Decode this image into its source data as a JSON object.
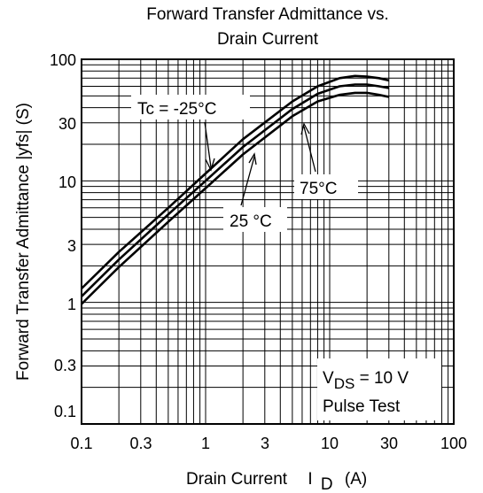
{
  "chart_data": {
    "type": "line",
    "title_lines": [
      "Forward Transfer Admittance vs.",
      "Drain Current"
    ],
    "xlabel": "Drain Current",
    "xlabel_symbol": "I",
    "xlabel_sub": "D",
    "xlabel_unit": "(A)",
    "ylabel": "Forward Transfer Admittance  |yfs|  (S)",
    "x_scale": "log",
    "y_scale": "log",
    "xlim": [
      0.1,
      100
    ],
    "ylim": [
      0.1,
      100
    ],
    "x_ticks": [
      0.1,
      0.3,
      1,
      3,
      10,
      30,
      100
    ],
    "x_tick_labels": [
      "0.1",
      "0.3",
      "1",
      "3",
      "10",
      "30",
      "100"
    ],
    "y_ticks": [
      100,
      30,
      10,
      3,
      1,
      0.3,
      0.1
    ],
    "y_tick_labels": [
      "100",
      "30",
      "10",
      "3",
      "1",
      "0.3",
      "0.1"
    ],
    "grid": true,
    "series": [
      {
        "name": "Tc = -25°C",
        "x": [
          0.1,
          0.2,
          0.5,
          1,
          2,
          5,
          8,
          12,
          16,
          20,
          25,
          30
        ],
        "y": [
          1.3,
          2.6,
          6.0,
          11.5,
          22,
          45,
          60,
          70,
          73,
          72,
          70,
          67
        ]
      },
      {
        "name": "25 °C",
        "x": [
          0.1,
          0.2,
          0.5,
          1,
          2,
          5,
          8,
          12,
          16,
          20,
          25,
          30
        ],
        "y": [
          1.12,
          2.25,
          5.3,
          10.0,
          19,
          39,
          52,
          60,
          62,
          62,
          60,
          58
        ]
      },
      {
        "name": "75°C",
        "x": [
          0.1,
          0.2,
          0.5,
          1,
          2,
          5,
          8,
          12,
          16,
          20,
          25,
          30
        ],
        "y": [
          0.97,
          1.95,
          4.6,
          8.7,
          16.5,
          34,
          45,
          51,
          53,
          53,
          51,
          49
        ]
      }
    ],
    "annotations": {
      "tc_label": "Tc = -25°C",
      "t25_label": "25 °C",
      "t75_label": "75°C",
      "cond_line1_prefix": "V",
      "cond_line1_sub": "DS",
      "cond_line1_suffix": " = 10 V",
      "cond_line2": "Pulse Test"
    }
  }
}
